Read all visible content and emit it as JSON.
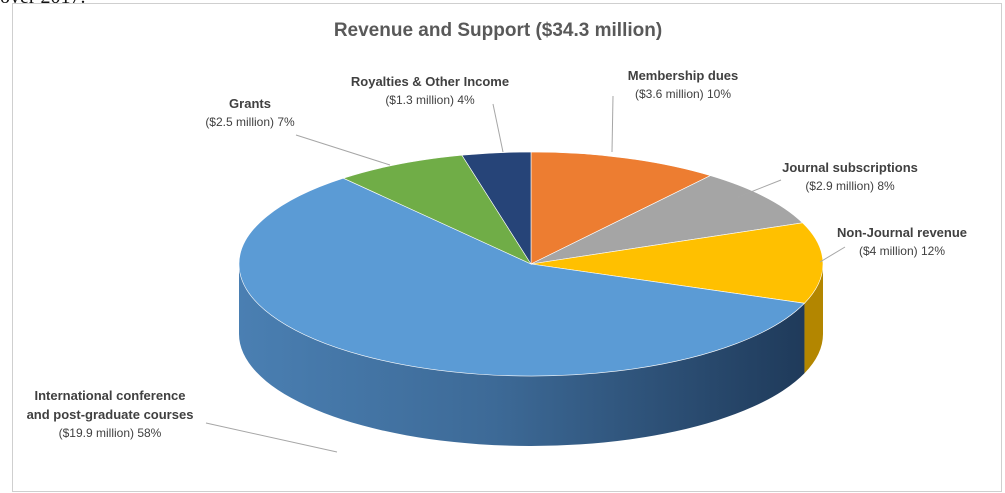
{
  "page": {
    "top_text": "over 2017."
  },
  "chart_data": {
    "type": "pie",
    "title": "Revenue and Support ($34.3 million)",
    "slices": [
      {
        "name": "Membership dues",
        "amount": "($3.6 million)",
        "percent": "10%",
        "value": 3.6,
        "color": "#ED7D31"
      },
      {
        "name": "Journal subscriptions",
        "amount": "($2.9 million)",
        "percent": "8%",
        "value": 2.9,
        "color": "#A5A5A5"
      },
      {
        "name": "Non-Journal revenue",
        "amount": "($4 million)",
        "percent": "12%",
        "value": 4.0,
        "color": "#FFC000"
      },
      {
        "name": "International conference and post-graduate courses",
        "name_lines": [
          "International conference",
          "and post-graduate courses"
        ],
        "amount": "($19.9 million)",
        "percent": "58%",
        "value": 19.9,
        "color": "#5B9BD5"
      },
      {
        "name": "Grants",
        "amount": "($2.5 million)",
        "percent": "7%",
        "value": 2.5,
        "color": "#70AD47"
      },
      {
        "name": "Royalties & Other Income",
        "amount": "($1.3 million)",
        "percent": "4%",
        "value": 1.3,
        "color": "#264478"
      }
    ],
    "total_label": "$34.3 million",
    "style": "3d-pie"
  }
}
